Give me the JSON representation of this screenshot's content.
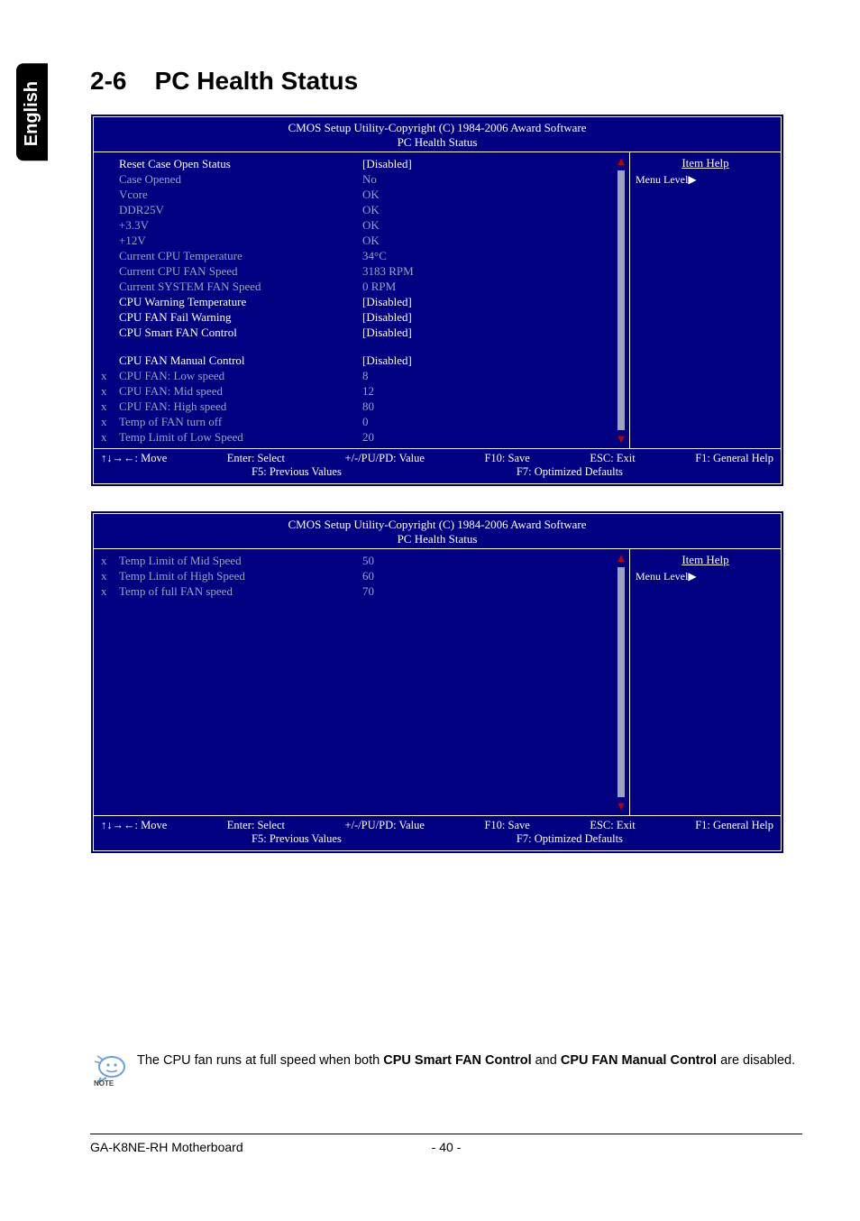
{
  "sideTab": "English",
  "sectionNumber": "2-6",
  "sectionTitle": "PC Health Status",
  "bios": {
    "headerLine1": "CMOS Setup Utility-Copyright (C) 1984-2006 Award Software",
    "headerLine2": "PC Health Status",
    "itemHelp": "Item Help",
    "menuLevel": "Menu Level",
    "footer": {
      "move": "↑↓→←: Move",
      "enter": "Enter: Select",
      "pupd": "+/-/PU/PD: Value",
      "f10": "F10: Save",
      "esc": "ESC: Exit",
      "f1": "F1: General Help",
      "f5": "F5: Previous Values",
      "f7": "F7: Optimized Defaults"
    }
  },
  "panel1": {
    "rows": [
      {
        "x": "",
        "label": "Reset Case Open Status",
        "val": "[Disabled]",
        "dim": false
      },
      {
        "x": "",
        "label": "Case Opened",
        "val": "No",
        "dim": true
      },
      {
        "x": "",
        "label": "Vcore",
        "val": "OK",
        "dim": true
      },
      {
        "x": "",
        "label": "DDR25V",
        "val": "OK",
        "dim": true
      },
      {
        "x": "",
        "label": "+3.3V",
        "val": "OK",
        "dim": true
      },
      {
        "x": "",
        "label": "+12V",
        "val": "OK",
        "dim": true
      },
      {
        "x": "",
        "label": "Current CPU Temperature",
        "val": "34°C",
        "dim": true
      },
      {
        "x": "",
        "label": "Current CPU FAN Speed",
        "val": "3183 RPM",
        "dim": true
      },
      {
        "x": "",
        "label": "Current SYSTEM FAN Speed",
        "val": "0       RPM",
        "dim": true
      },
      {
        "x": "",
        "label": "CPU Warning Temperature",
        "val": "[Disabled]",
        "dim": false
      },
      {
        "x": "",
        "label": "CPU FAN Fail Warning",
        "val": "[Disabled]",
        "dim": false
      },
      {
        "x": "",
        "label": "CPU Smart FAN Control",
        "val": "[Disabled]",
        "dim": false
      }
    ],
    "rows2": [
      {
        "x": "",
        "label": "CPU FAN Manual Control",
        "val": "[Disabled]",
        "dim": false
      },
      {
        "x": "x",
        "label": "CPU FAN: Low speed",
        "val": "8",
        "dim": true
      },
      {
        "x": "x",
        "label": "CPU FAN: Mid speed",
        "val": "12",
        "dim": true
      },
      {
        "x": "x",
        "label": "CPU FAN: High speed",
        "val": "80",
        "dim": true
      },
      {
        "x": "x",
        "label": "Temp of FAN turn off",
        "val": "0",
        "dim": true
      },
      {
        "x": "x",
        "label": "Temp Limit of Low Speed",
        "val": "20",
        "dim": true
      }
    ]
  },
  "panel2": {
    "rows": [
      {
        "x": "x",
        "label": "Temp Limit of Mid Speed",
        "val": "50",
        "dim": true
      },
      {
        "x": "x",
        "label": "Temp Limit of High Speed",
        "val": "60",
        "dim": true
      },
      {
        "x": "x",
        "label": "Temp of full FAN speed",
        "val": "70",
        "dim": true
      }
    ]
  },
  "note": {
    "pre": "The CPU fan runs at full speed when both ",
    "b1": "CPU Smart FAN Control",
    "mid": " and ",
    "b2": "CPU FAN Manual Control",
    "post": " are disabled.",
    "iconLabel": "NOTE"
  },
  "pageFooter": {
    "left": "GA-K8NE-RH Motherboard",
    "center": "- 40 -"
  },
  "colors": {
    "biosBg": "#000080",
    "dimText": "#9da2bd",
    "arrow": "#c00000"
  }
}
